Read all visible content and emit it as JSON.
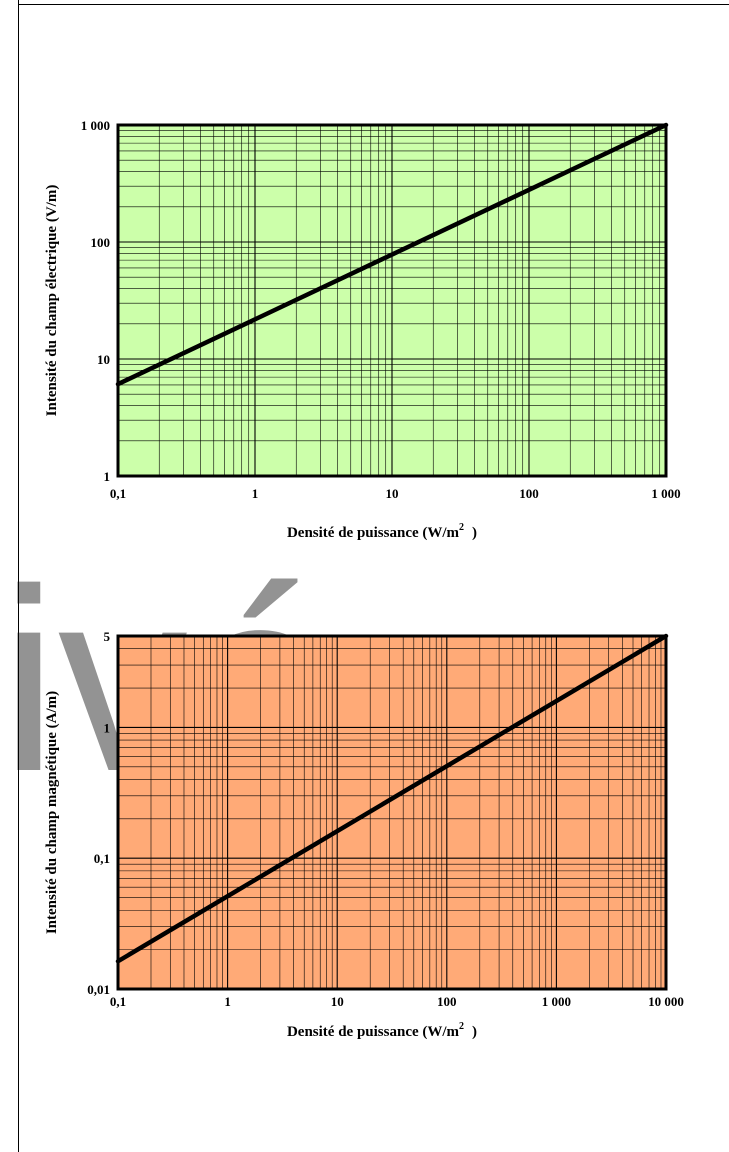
{
  "watermark": "ivé",
  "chart_data": [
    {
      "type": "line",
      "x_scale": "log",
      "y_scale": "log",
      "xlim": [
        0.1,
        1000
      ],
      "ylim": [
        1,
        1000
      ],
      "xlabel": "Densité de puissance (W/m",
      "xlabel_sup": "2",
      "xlabel_end": ")",
      "ylabel": "Intensité du champ électrique (V/m)",
      "x_ticks": [
        0.1,
        1,
        10,
        100,
        1000
      ],
      "x_tick_labels": [
        "0,1",
        "1",
        "10",
        "100",
        "1 000"
      ],
      "y_ticks": [
        1,
        10,
        100,
        1000
      ],
      "y_tick_labels": [
        "1",
        "10",
        "100",
        "1 000"
      ],
      "background_color": "#ccffaa",
      "grid": true,
      "series": [
        {
          "x": [
            0.1,
            1000
          ],
          "y": [
            6.1,
            1000
          ]
        }
      ]
    },
    {
      "type": "line",
      "x_scale": "log",
      "y_scale": "log",
      "xlim": [
        0.1,
        10000
      ],
      "ylim": [
        0.01,
        5
      ],
      "xlabel": "Densité de puissance (W/m",
      "xlabel_sup": "2",
      "xlabel_end": ")",
      "ylabel": "Intensité du champ magnétique (A/m)",
      "x_ticks": [
        0.1,
        1,
        10,
        100,
        1000,
        10000
      ],
      "x_tick_labels": [
        "0,1",
        "1",
        "10",
        "100",
        "1 000",
        "10 000"
      ],
      "y_ticks": [
        0.01,
        0.1,
        1,
        5
      ],
      "y_tick_labels": [
        "0,01",
        "0,1",
        "1",
        "5"
      ],
      "background_color": "#ffaa77",
      "grid": true,
      "series": [
        {
          "x": [
            0.1,
            10000
          ],
          "y": [
            0.0163,
            5
          ]
        }
      ]
    }
  ]
}
